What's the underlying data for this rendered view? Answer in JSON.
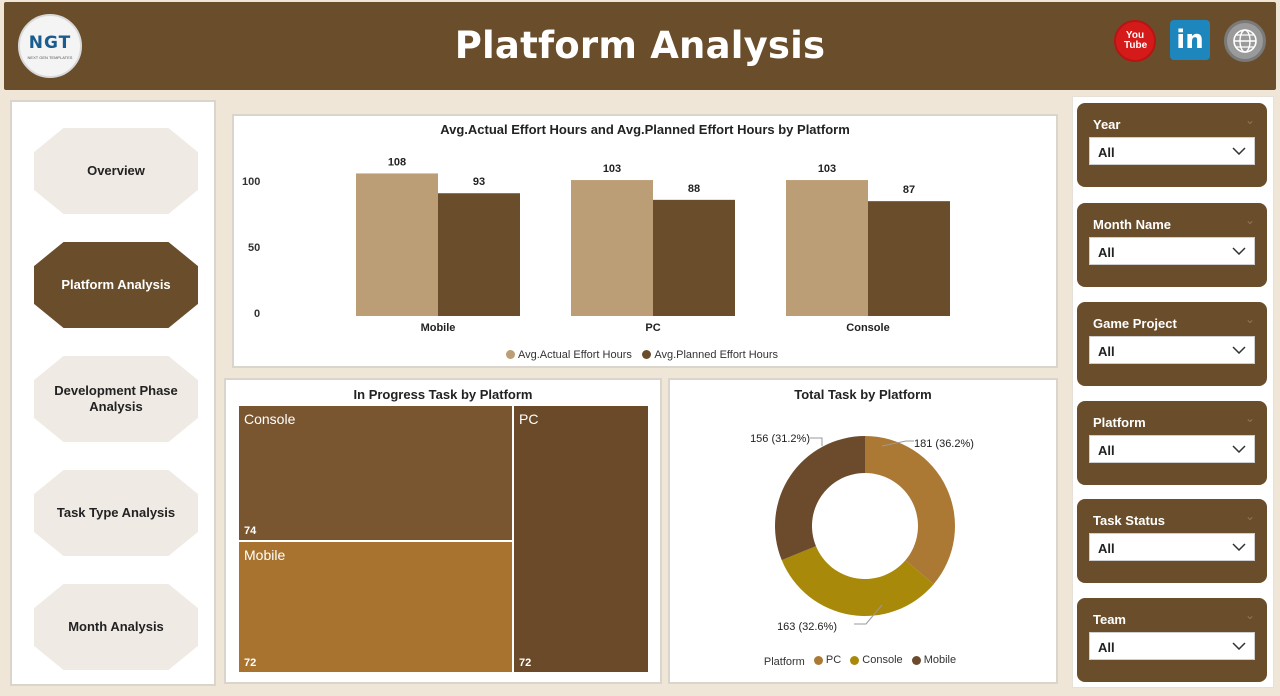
{
  "header": {
    "title": "Platform Analysis",
    "logo_text": "NGT",
    "logo_sub": "NEXT GEN TEMPLATES"
  },
  "social": {
    "youtube": "You Tube",
    "linkedin": "in"
  },
  "nav": {
    "items": [
      {
        "label": "Overview",
        "active": false
      },
      {
        "label": "Platform Analysis",
        "active": true
      },
      {
        "label": "Development Phase Analysis",
        "active": false
      },
      {
        "label": "Task Type Analysis",
        "active": false
      },
      {
        "label": "Month Analysis",
        "active": false
      }
    ]
  },
  "colors": {
    "brown_dark": "#6a4e2c",
    "tan": "#bb9e76",
    "treemap_console": "#7a5630",
    "treemap_mobile": "#a8732f",
    "treemap_pc": "#6a4a28",
    "donut_pc": "#ac7935",
    "donut_console": "#a8890a",
    "donut_mobile": "#6b4b2c"
  },
  "filters": [
    {
      "label": "Year",
      "value": "All"
    },
    {
      "label": "Month Name",
      "value": "All"
    },
    {
      "label": "Game Project",
      "value": "All"
    },
    {
      "label": "Platform",
      "value": "All"
    },
    {
      "label": "Task Status",
      "value": "All"
    },
    {
      "label": "Team",
      "value": "All"
    }
  ],
  "chart_data": [
    {
      "type": "bar",
      "title": "Avg.Actual Effort Hours and Avg.Planned Effort Hours by Platform",
      "categories": [
        "Mobile",
        "PC",
        "Console"
      ],
      "series": [
        {
          "name": "Avg.Actual Effort Hours",
          "values": [
            108,
            103,
            103
          ]
        },
        {
          "name": "Avg.Planned Effort Hours",
          "values": [
            93,
            88,
            87
          ]
        }
      ],
      "yticks": [
        "100",
        "50",
        "0"
      ],
      "ylim": [
        0,
        120
      ],
      "grid": false,
      "legend": "bottom"
    },
    {
      "type": "treemap",
      "title": "In Progress Task by Platform",
      "items": [
        {
          "name": "Console",
          "value": 74
        },
        {
          "name": "Mobile",
          "value": 72
        },
        {
          "name": "PC",
          "value": 72
        }
      ]
    },
    {
      "type": "pie",
      "title": "Total Task by Platform",
      "legend_title": "Platform",
      "slices": [
        {
          "name": "PC",
          "value": 181,
          "label": "181 (36.2%)"
        },
        {
          "name": "Console",
          "value": 163,
          "label": "163 (32.6%)"
        },
        {
          "name": "Mobile",
          "value": 156,
          "label": "156 (31.2%)"
        }
      ],
      "legend": "bottom"
    }
  ]
}
